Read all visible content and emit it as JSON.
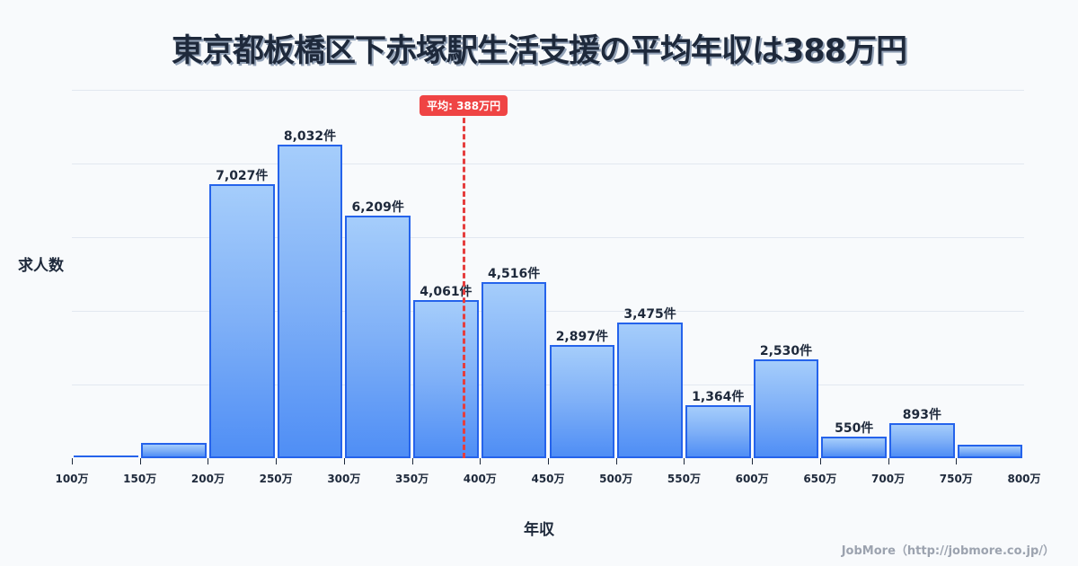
{
  "title": "東京都板橋区下赤塚駅生活支援の平均年収は388万円",
  "y_axis_label": "求人数",
  "x_axis_label": "年収",
  "mean_badge": "平均: 388万円",
  "credit": "JobMore（http://jobmore.co.jp/）",
  "colors": {
    "bar_border": "#2563eb",
    "bar_top": "#a5cdfb",
    "bar_bottom": "#4f8ef5",
    "mean_line": "#e53e3e",
    "badge_bg": "#ef4444",
    "gridline": "#e2e8f0",
    "background": "#f8fafc"
  },
  "chart_data": {
    "type": "bar",
    "title": "東京都板橋区下赤塚駅生活支援の平均年収は388万円",
    "xlabel": "年収",
    "ylabel": "求人数",
    "categories": [
      "100-150万",
      "150-200万",
      "200-250万",
      "250-300万",
      "300-350万",
      "350-400万",
      "400-450万",
      "450-500万",
      "500-550万",
      "550-600万",
      "600-650万",
      "650-700万",
      "700-750万",
      "750-800万"
    ],
    "values": [
      45,
      390,
      7027,
      8032,
      6209,
      4061,
      4516,
      2897,
      3475,
      1364,
      2530,
      550,
      893,
      345
    ],
    "labels": [
      "",
      "",
      "7,027件",
      "8,032件",
      "6,209件",
      "4,061件",
      "4,516件",
      "2,897件",
      "3,475件",
      "1,364件",
      "2,530件",
      "550件",
      "893件",
      ""
    ],
    "x_ticks": [
      "100万",
      "150万",
      "200万",
      "250万",
      "300万",
      "350万",
      "400万",
      "450万",
      "500万",
      "550万",
      "600万",
      "650万",
      "700万",
      "750万",
      "800万"
    ],
    "xlim": [
      100,
      800
    ],
    "ylim": [
      0,
      9436
    ],
    "grid": true,
    "mean": 388,
    "mean_label": "平均: 388万円"
  }
}
